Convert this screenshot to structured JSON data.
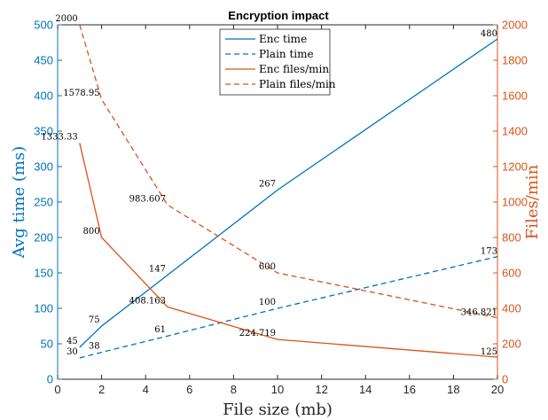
{
  "chart_data": {
    "type": "line",
    "title": "Encryption impact",
    "xlabel": "File size (mb)",
    "ylabel_left": "Avg time (ms)",
    "ylabel_right": "Files/min",
    "xlim": [
      0,
      20
    ],
    "ylim_left": [
      0,
      500
    ],
    "ylim_right": [
      0,
      2000
    ],
    "xticks": [
      0,
      2,
      4,
      6,
      8,
      10,
      12,
      14,
      16,
      18,
      20
    ],
    "yticks_left": [
      0,
      50,
      100,
      150,
      200,
      250,
      300,
      350,
      400,
      450,
      500
    ],
    "yticks_right": [
      0,
      200,
      400,
      600,
      800,
      1000,
      1200,
      1400,
      1600,
      1800,
      2000
    ],
    "grid": false,
    "legend_position": "top-center",
    "colors": {
      "left_axis": "#0072BD",
      "right_axis": "#D95319"
    },
    "series": [
      {
        "name": "Enc time",
        "axis": "left",
        "style": "solid",
        "color": "#0072BD",
        "x": [
          1,
          2,
          5,
          10,
          20
        ],
        "y": [
          45,
          75,
          147,
          267,
          480
        ],
        "labels": [
          "45",
          "75",
          "147",
          "267",
          "480"
        ]
      },
      {
        "name": "Plain time",
        "axis": "left",
        "style": "dashed",
        "color": "#0072BD",
        "x": [
          1,
          2,
          5,
          10,
          20
        ],
        "y": [
          30,
          38,
          61,
          100,
          173
        ],
        "labels": [
          "30",
          "38",
          "61",
          "100",
          "173"
        ]
      },
      {
        "name": "Enc files/min",
        "axis": "right",
        "style": "solid",
        "color": "#D95319",
        "x": [
          1,
          2,
          5,
          10,
          20
        ],
        "y": [
          1333.33,
          800,
          408.163,
          224.719,
          125
        ],
        "labels": [
          "1333.33",
          "800",
          "408.163",
          "224.719",
          "125"
        ]
      },
      {
        "name": "Plain files/min",
        "axis": "right",
        "style": "dashed",
        "color": "#D95319",
        "x": [
          1,
          2,
          5,
          10,
          20
        ],
        "y": [
          2000,
          1578.95,
          983.607,
          600,
          346.821
        ],
        "labels": [
          "2000",
          "1578.95",
          "983.607",
          "600",
          "346.821"
        ]
      }
    ]
  }
}
